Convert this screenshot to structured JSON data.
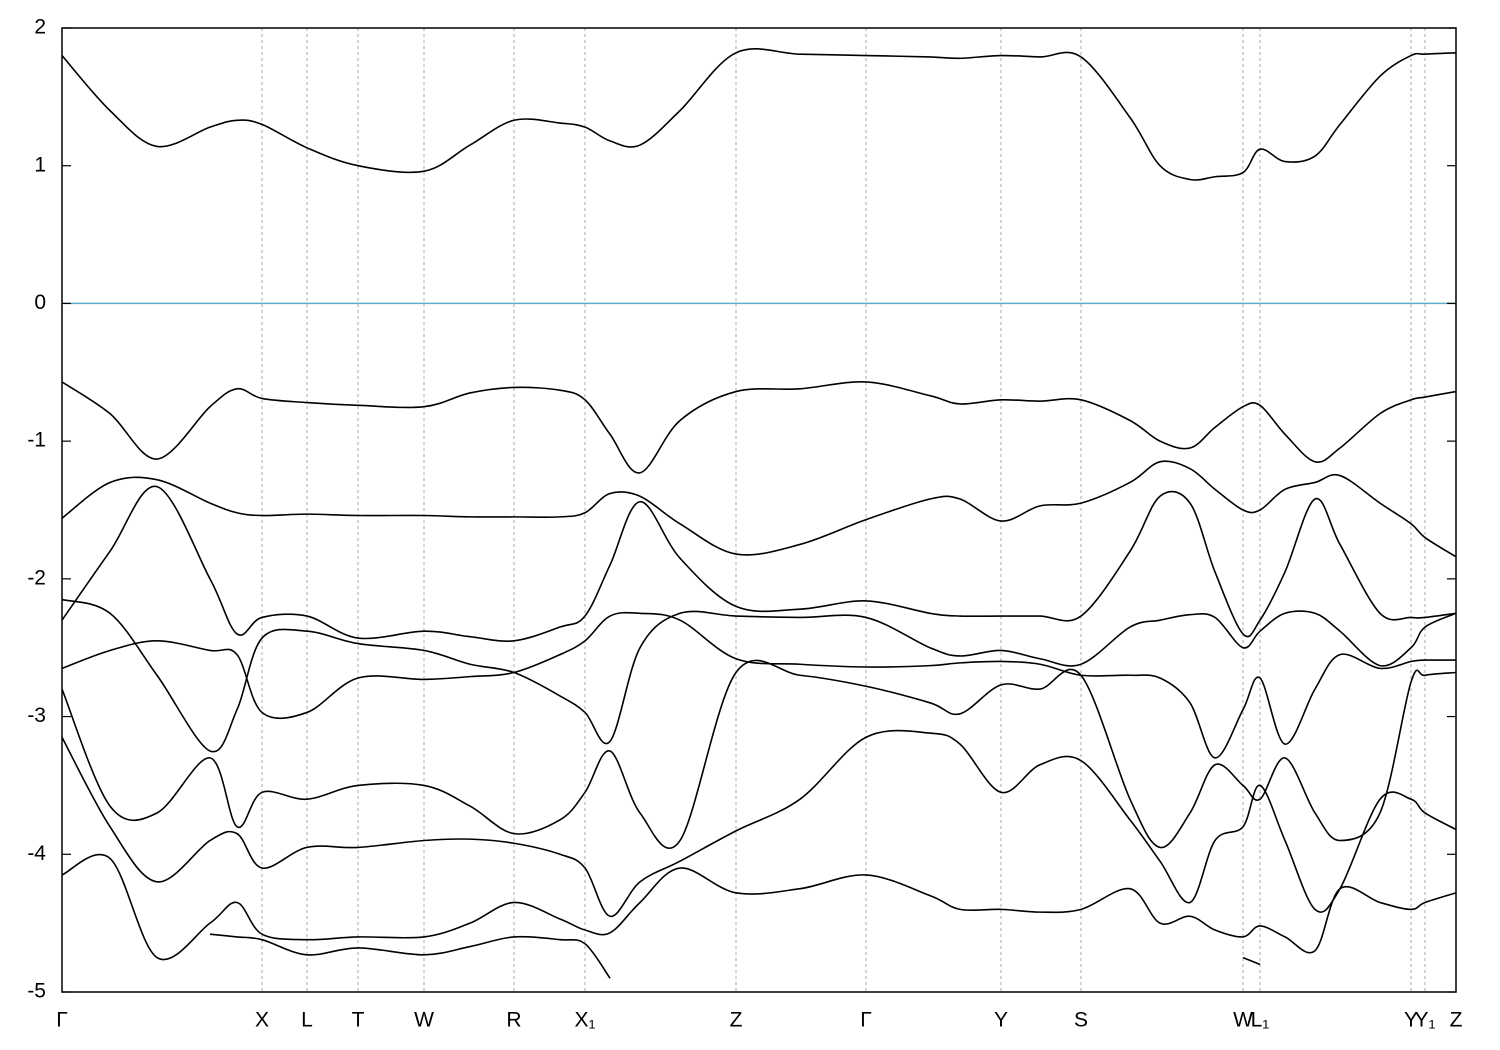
{
  "chart_data": {
    "type": "line",
    "color": "#000000",
    "xlim": [
      0,
      13.94
    ],
    "ylim": [
      -5,
      2
    ],
    "yticks": [
      -5,
      -4,
      -3,
      -2,
      -1,
      0,
      1,
      2
    ],
    "xticks": [
      {
        "value": 0,
        "label": "Γ"
      },
      {
        "value": 2.0,
        "label": "X"
      },
      {
        "value": 2.45,
        "label": "L"
      },
      {
        "value": 2.96,
        "label": "T"
      },
      {
        "value": 3.62,
        "label": "W"
      },
      {
        "value": 4.52,
        "label": "R"
      },
      {
        "value": 5.23,
        "label": "X₁"
      },
      {
        "value": 6.74,
        "label": "Z"
      },
      {
        "value": 8.04,
        "label": "Γ"
      },
      {
        "value": 9.39,
        "label": "Y"
      },
      {
        "value": 10.19,
        "label": "S"
      },
      {
        "value": 11.81,
        "label": "W"
      },
      {
        "value": 11.98,
        "label": "L₁"
      },
      {
        "value": 13.49,
        "label": "Y"
      },
      {
        "value": 13.63,
        "label": "Y₁"
      },
      {
        "value": 13.94,
        "label": "Z"
      }
    ],
    "grid": true,
    "fermi_level": {
      "value": 0,
      "color": "#5aaec7"
    },
    "x": [
      0,
      0.48,
      0.95,
      1.48,
      1.75,
      2.0,
      2.45,
      2.96,
      3.62,
      4.08,
      4.52,
      4.98,
      5.23,
      5.48,
      5.78,
      6.18,
      6.74,
      7.38,
      8.04,
      8.68,
      8.98,
      9.39,
      9.78,
      10.19,
      10.68,
      10.98,
      11.28,
      11.53,
      11.81,
      11.98,
      12.23,
      12.53,
      12.78,
      13.18,
      13.49,
      13.63,
      13.94
    ],
    "series": [
      {
        "values": [
          1.8,
          1.4,
          1.14,
          1.28,
          1.33,
          1.3,
          1.13,
          1.0,
          0.96,
          1.15,
          1.33,
          1.31,
          1.28,
          1.18,
          1.15,
          1.4,
          1.82,
          1.81,
          1.8,
          1.79,
          1.78,
          1.8,
          1.79,
          1.79,
          1.35,
          1.0,
          0.9,
          0.92,
          0.95,
          1.12,
          1.03,
          1.07,
          1.3,
          1.65,
          1.8,
          1.81,
          1.82
        ]
      },
      {
        "values": [
          -0.57,
          -0.8,
          -1.13,
          -0.75,
          -0.62,
          -0.69,
          -0.72,
          -0.74,
          -0.75,
          -0.65,
          -0.61,
          -0.63,
          -0.7,
          -0.95,
          -1.23,
          -0.85,
          -0.64,
          -0.62,
          -0.57,
          -0.67,
          -0.73,
          -0.7,
          -0.71,
          -0.7,
          -0.85,
          -1.0,
          -1.05,
          -0.9,
          -0.75,
          -0.74,
          -0.95,
          -1.15,
          -1.05,
          -0.8,
          -0.7,
          -0.68,
          -0.64
        ]
      },
      {
        "values": [
          -1.56,
          -1.3,
          -1.28,
          -1.45,
          -1.52,
          -1.54,
          -1.53,
          -1.54,
          -1.54,
          -1.55,
          -1.55,
          -1.55,
          -1.52,
          -1.38,
          -1.4,
          -1.6,
          -1.82,
          -1.75,
          -1.57,
          -1.42,
          -1.42,
          -1.58,
          -1.47,
          -1.45,
          -1.3,
          -1.15,
          -1.2,
          -1.35,
          -1.5,
          -1.5,
          -1.35,
          -1.3,
          -1.25,
          -1.45,
          -1.6,
          -1.7,
          -1.84
        ]
      },
      {
        "values": [
          -2.3,
          -1.8,
          -1.33,
          -2.0,
          -2.4,
          -2.28,
          -2.27,
          -2.43,
          -2.38,
          -2.42,
          -2.45,
          -2.35,
          -2.27,
          -1.9,
          -1.44,
          -1.85,
          -2.2,
          -2.22,
          -2.16,
          -2.25,
          -2.27,
          -2.27,
          -2.27,
          -2.27,
          -1.8,
          -1.4,
          -1.45,
          -1.95,
          -2.4,
          -2.3,
          -1.95,
          -1.42,
          -1.75,
          -2.25,
          -2.28,
          -2.28,
          -2.25
        ]
      },
      {
        "values": [
          -2.15,
          -2.25,
          -2.7,
          -3.25,
          -2.95,
          -2.43,
          -2.38,
          -2.47,
          -2.52,
          -2.62,
          -2.68,
          -2.85,
          -2.97,
          -3.18,
          -2.5,
          -2.25,
          -2.27,
          -2.28,
          -2.28,
          -2.5,
          -2.56,
          -2.52,
          -2.58,
          -2.62,
          -2.35,
          -2.3,
          -2.26,
          -2.28,
          -2.5,
          -2.38,
          -2.25,
          -2.25,
          -2.38,
          -2.63,
          -2.5,
          -2.35,
          -2.25
        ]
      },
      {
        "values": [
          -2.65,
          -2.52,
          -2.45,
          -2.52,
          -2.55,
          -2.97,
          -2.97,
          -2.72,
          -2.73,
          -2.71,
          -2.68,
          -2.55,
          -2.45,
          -2.27,
          -2.25,
          -2.3,
          -2.58,
          -2.62,
          -2.64,
          -2.63,
          -2.61,
          -2.6,
          -2.62,
          -2.7,
          -2.7,
          -2.72,
          -2.9,
          -3.3,
          -2.95,
          -2.72,
          -3.2,
          -2.8,
          -2.55,
          -2.65,
          -2.6,
          -2.59,
          -2.59
        ]
      },
      {
        "values": [
          -2.8,
          -3.65,
          -3.7,
          -3.3,
          -3.8,
          -3.55,
          -3.6,
          -3.5,
          -3.5,
          -3.65,
          -3.85,
          -3.75,
          -3.55,
          -3.25,
          -3.7,
          -3.9,
          -2.68,
          -2.7,
          -2.78,
          -2.9,
          -2.98,
          -2.77,
          -2.8,
          -2.7,
          -3.6,
          -3.95,
          -3.7,
          -3.35,
          -3.5,
          -3.6,
          -3.3,
          -3.7,
          -3.9,
          -3.7,
          -2.75,
          -2.7,
          -2.68
        ]
      },
      {
        "values": [
          -3.15,
          -3.8,
          -4.2,
          -3.9,
          -3.85,
          -4.1,
          -3.95,
          -3.95,
          -3.9,
          -3.89,
          -3.92,
          -4.0,
          -4.1,
          -4.45,
          -4.2,
          -4.05,
          -3.83,
          -3.6,
          -3.15,
          -3.12,
          -3.2,
          -3.55,
          -3.35,
          -3.32,
          -3.75,
          -4.05,
          -4.35,
          -3.9,
          -3.8,
          -3.5,
          -3.9,
          -4.4,
          -4.25,
          -3.6,
          -3.6,
          -3.7,
          -3.82
        ]
      },
      {
        "values": [
          -4.15,
          -4.03,
          -4.75,
          -4.5,
          -4.35,
          -4.58,
          -4.62,
          -4.6,
          -4.6,
          -4.5,
          -4.35,
          -4.47,
          -4.55,
          -4.57,
          -4.35,
          -4.1,
          -4.28,
          -4.25,
          -4.15,
          -4.3,
          -4.4,
          -4.4,
          -4.42,
          -4.4,
          -4.25,
          -4.5,
          -4.45,
          -4.55,
          -4.6,
          -4.52,
          -4.6,
          -4.7,
          -4.25,
          -4.35,
          -4.4,
          -4.35,
          -4.28
        ]
      },
      {
        "values": [
          null,
          null,
          null,
          -4.58,
          -4.6,
          -4.62,
          -4.73,
          -4.68,
          -4.73,
          -4.67,
          -4.6,
          -4.62,
          -4.65,
          -4.9,
          null,
          null,
          null,
          null,
          null,
          null,
          null,
          null,
          null,
          null,
          null,
          null,
          null,
          null,
          -4.75,
          -4.8,
          null,
          null,
          null,
          null,
          null,
          null,
          null
        ]
      }
    ]
  }
}
